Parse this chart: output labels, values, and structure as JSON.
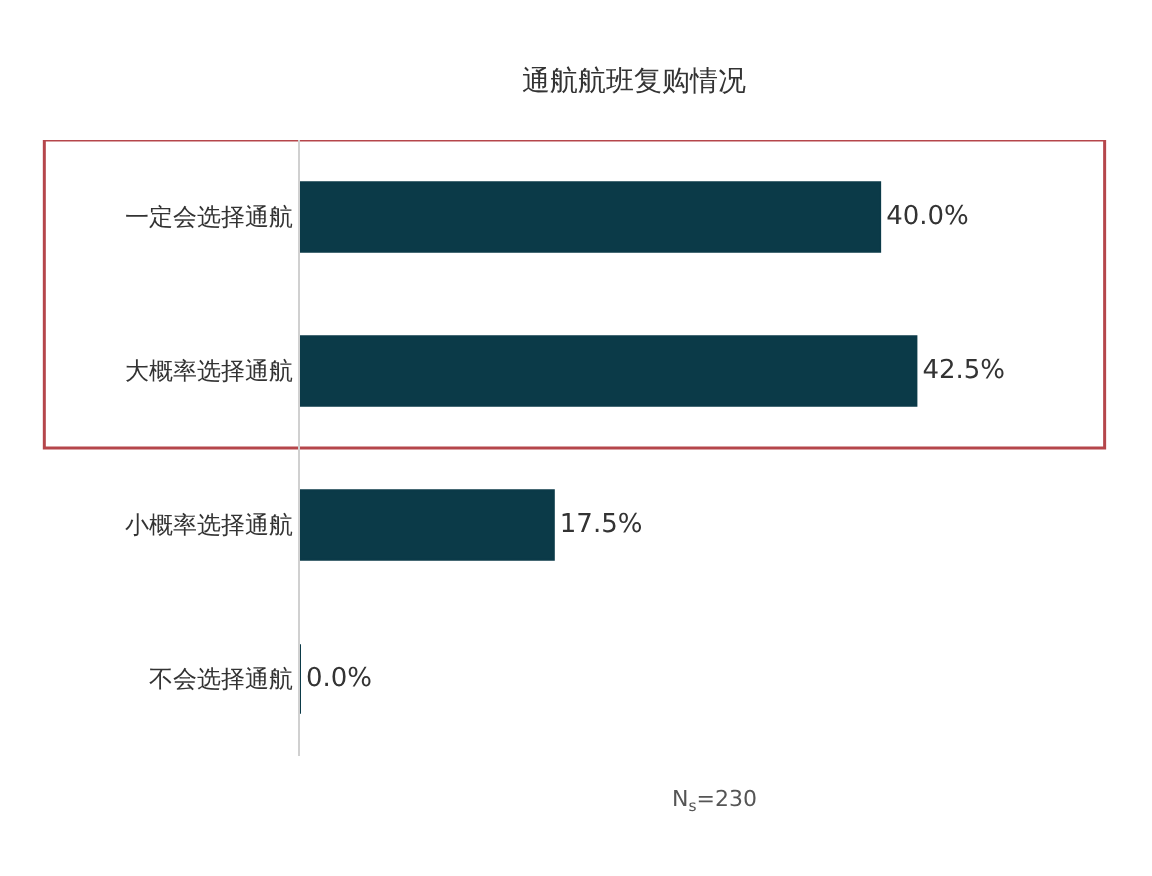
{
  "chart_data": {
    "type": "bar",
    "orientation": "horizontal",
    "title": "通航航班复购情况",
    "categories": [
      "一定会选择通航",
      "大概率选择通航",
      "小概率选择通航",
      "不会选择通航"
    ],
    "values": [
      40.0,
      42.5,
      17.5,
      0.0
    ],
    "value_labels": [
      "40.0%",
      "42.5%",
      "17.5%",
      "0.0%"
    ],
    "color": "#0b3a48",
    "annotations": [
      "N$_{s}$=230"
    ],
    "grid": false,
    "legend": false
  }
}
